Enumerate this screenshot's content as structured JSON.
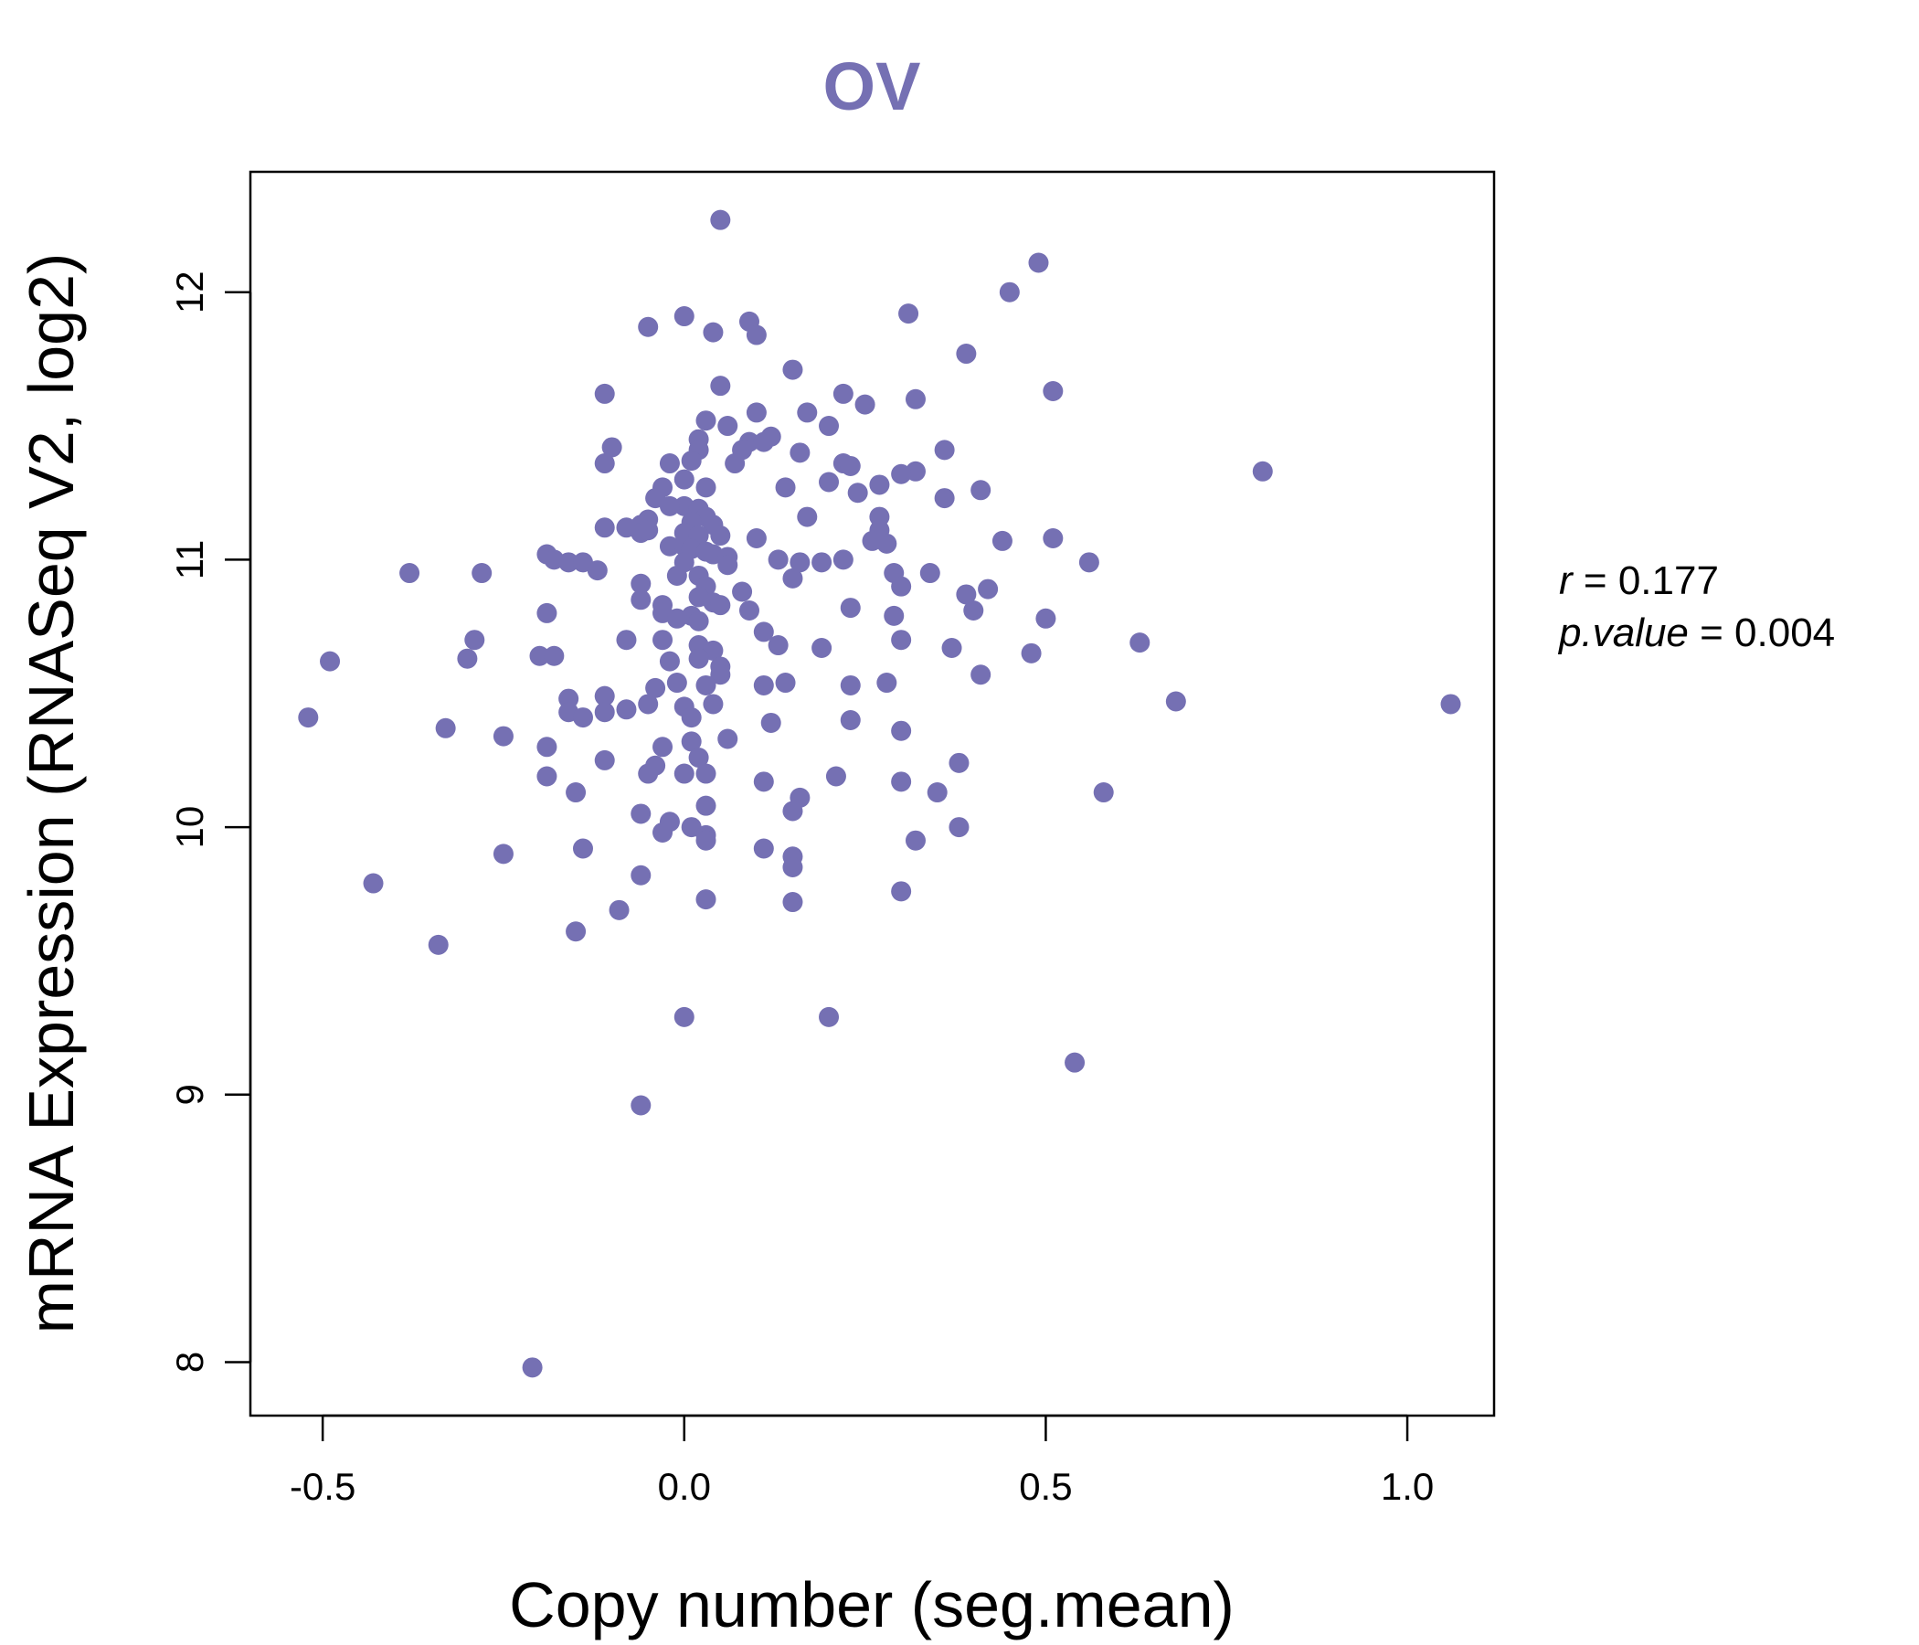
{
  "chart_data": {
    "type": "scatter",
    "title": "OV",
    "xlabel": "Copy number (seg.mean)",
    "ylabel": "mRNA Expression (RNASeq V2, log2)",
    "xlim": [
      -0.6,
      1.12
    ],
    "ylim": [
      7.8,
      12.45
    ],
    "xticks": [
      -0.5,
      0.0,
      0.5,
      1.0
    ],
    "xtick_labels": [
      "-0.5",
      "0.0",
      "0.5",
      "1.0"
    ],
    "yticks": [
      8,
      9,
      10,
      11,
      12
    ],
    "ytick_labels": [
      "8",
      "9",
      "10",
      "11",
      "12"
    ],
    "point_color": "#7570b3",
    "annotation": {
      "r_label": "r",
      "r_value": "0.177",
      "p_label": "p.value",
      "p_value": "0.004"
    },
    "points": [
      [
        0.05,
        12.27
      ],
      [
        0.49,
        12.11
      ],
      [
        0.45,
        12.0
      ],
      [
        0.31,
        11.92
      ],
      [
        0.0,
        11.91
      ],
      [
        0.09,
        11.89
      ],
      [
        -0.05,
        11.87
      ],
      [
        0.04,
        11.85
      ],
      [
        0.1,
        11.84
      ],
      [
        0.39,
        11.77
      ],
      [
        0.15,
        11.71
      ],
      [
        0.05,
        11.65
      ],
      [
        0.51,
        11.63
      ],
      [
        -0.11,
        11.62
      ],
      [
        0.22,
        11.62
      ],
      [
        0.32,
        11.6
      ],
      [
        0.25,
        11.58
      ],
      [
        0.17,
        11.55
      ],
      [
        0.1,
        11.55
      ],
      [
        0.03,
        11.52
      ],
      [
        0.06,
        11.5
      ],
      [
        0.2,
        11.5
      ],
      [
        0.02,
        11.45
      ],
      [
        0.12,
        11.46
      ],
      [
        0.09,
        11.44
      ],
      [
        0.11,
        11.44
      ],
      [
        -0.1,
        11.42
      ],
      [
        0.08,
        11.41
      ],
      [
        0.02,
        11.41
      ],
      [
        0.36,
        11.41
      ],
      [
        0.16,
        11.4
      ],
      [
        0.01,
        11.37
      ],
      [
        -0.11,
        11.36
      ],
      [
        -0.02,
        11.36
      ],
      [
        0.07,
        11.36
      ],
      [
        0.22,
        11.36
      ],
      [
        0.23,
        11.35
      ],
      [
        0.32,
        11.33
      ],
      [
        0.8,
        11.33
      ],
      [
        0.3,
        11.32
      ],
      [
        0.0,
        11.3
      ],
      [
        0.2,
        11.29
      ],
      [
        0.27,
        11.28
      ],
      [
        0.14,
        11.27
      ],
      [
        0.41,
        11.26
      ],
      [
        -0.03,
        11.27
      ],
      [
        0.03,
        11.27
      ],
      [
        0.24,
        11.25
      ],
      [
        -0.04,
        11.23
      ],
      [
        0.36,
        11.23
      ],
      [
        0.0,
        11.2
      ],
      [
        0.02,
        11.19
      ],
      [
        -0.02,
        11.2
      ],
      [
        0.27,
        11.16
      ],
      [
        0.03,
        11.16
      ],
      [
        0.17,
        11.16
      ],
      [
        -0.05,
        11.15
      ],
      [
        0.01,
        11.14
      ],
      [
        -0.06,
        11.13
      ],
      [
        0.04,
        11.13
      ],
      [
        -0.11,
        11.12
      ],
      [
        -0.08,
        11.12
      ],
      [
        -0.06,
        11.1
      ],
      [
        -0.05,
        11.11
      ],
      [
        0.0,
        11.1
      ],
      [
        0.27,
        11.11
      ],
      [
        0.05,
        11.09
      ],
      [
        0.02,
        11.09
      ],
      [
        0.1,
        11.08
      ],
      [
        0.44,
        11.07
      ],
      [
        0.51,
        11.08
      ],
      [
        0.26,
        11.07
      ],
      [
        0.28,
        11.06
      ],
      [
        -0.02,
        11.05
      ],
      [
        0.0,
        11.05
      ],
      [
        0.01,
        11.04
      ],
      [
        0.03,
        11.03
      ],
      [
        -0.19,
        11.02
      ],
      [
        0.04,
        11.02
      ],
      [
        0.06,
        11.01
      ],
      [
        -0.18,
        11.0
      ],
      [
        0.13,
        11.0
      ],
      [
        0.22,
        11.0
      ],
      [
        -0.16,
        10.99
      ],
      [
        -0.14,
        10.99
      ],
      [
        0.0,
        10.99
      ],
      [
        0.06,
        10.98
      ],
      [
        0.16,
        10.99
      ],
      [
        0.19,
        10.99
      ],
      [
        0.56,
        10.99
      ],
      [
        -0.38,
        10.95
      ],
      [
        -0.28,
        10.95
      ],
      [
        -0.12,
        10.96
      ],
      [
        0.34,
        10.95
      ],
      [
        0.29,
        10.95
      ],
      [
        -0.01,
        10.94
      ],
      [
        0.02,
        10.94
      ],
      [
        0.15,
        10.93
      ],
      [
        0.3,
        10.9
      ],
      [
        -0.06,
        10.91
      ],
      [
        0.03,
        10.9
      ],
      [
        0.42,
        10.89
      ],
      [
        0.08,
        10.88
      ],
      [
        0.39,
        10.87
      ],
      [
        0.02,
        10.86
      ],
      [
        -0.06,
        10.85
      ],
      [
        0.04,
        10.84
      ],
      [
        -0.03,
        10.83
      ],
      [
        0.05,
        10.83
      ],
      [
        0.23,
        10.82
      ],
      [
        0.09,
        10.81
      ],
      [
        -0.19,
        10.8
      ],
      [
        -0.03,
        10.8
      ],
      [
        0.01,
        10.79
      ],
      [
        0.4,
        10.81
      ],
      [
        0.29,
        10.79
      ],
      [
        -0.01,
        10.78
      ],
      [
        0.5,
        10.78
      ],
      [
        0.02,
        10.77
      ],
      [
        0.11,
        10.73
      ],
      [
        -0.08,
        10.7
      ],
      [
        -0.03,
        10.7
      ],
      [
        0.3,
        10.7
      ],
      [
        -0.29,
        10.7
      ],
      [
        0.02,
        10.68
      ],
      [
        0.13,
        10.68
      ],
      [
        0.63,
        10.69
      ],
      [
        0.19,
        10.67
      ],
      [
        0.37,
        10.67
      ],
      [
        0.04,
        10.66
      ],
      [
        -0.3,
        10.63
      ],
      [
        -0.2,
        10.64
      ],
      [
        -0.18,
        10.64
      ],
      [
        0.02,
        10.63
      ],
      [
        0.48,
        10.65
      ],
      [
        -0.49,
        10.62
      ],
      [
        -0.02,
        10.62
      ],
      [
        0.05,
        10.6
      ],
      [
        0.05,
        10.57
      ],
      [
        0.41,
        10.57
      ],
      [
        -0.01,
        10.54
      ],
      [
        0.14,
        10.54
      ],
      [
        0.03,
        10.53
      ],
      [
        -0.04,
        10.52
      ],
      [
        0.11,
        10.53
      ],
      [
        0.23,
        10.53
      ],
      [
        0.28,
        10.54
      ],
      [
        -0.16,
        10.48
      ],
      [
        -0.11,
        10.49
      ],
      [
        -0.05,
        10.46
      ],
      [
        0.0,
        10.45
      ],
      [
        0.04,
        10.46
      ],
      [
        -0.08,
        10.44
      ],
      [
        -0.16,
        10.43
      ],
      [
        -0.11,
        10.43
      ],
      [
        0.68,
        10.47
      ],
      [
        1.06,
        10.46
      ],
      [
        -0.52,
        10.41
      ],
      [
        -0.14,
        10.41
      ],
      [
        0.01,
        10.41
      ],
      [
        0.23,
        10.4
      ],
      [
        0.12,
        10.39
      ],
      [
        -0.33,
        10.37
      ],
      [
        0.3,
        10.36
      ],
      [
        -0.25,
        10.34
      ],
      [
        0.06,
        10.33
      ],
      [
        0.01,
        10.32
      ],
      [
        -0.19,
        10.3
      ],
      [
        -0.03,
        10.3
      ],
      [
        -0.11,
        10.25
      ],
      [
        0.02,
        10.26
      ],
      [
        0.38,
        10.24
      ],
      [
        -0.04,
        10.23
      ],
      [
        0.0,
        10.2
      ],
      [
        -0.05,
        10.2
      ],
      [
        0.03,
        10.2
      ],
      [
        -0.19,
        10.19
      ],
      [
        0.21,
        10.19
      ],
      [
        0.11,
        10.17
      ],
      [
        0.3,
        10.17
      ],
      [
        -0.15,
        10.13
      ],
      [
        0.35,
        10.13
      ],
      [
        0.58,
        10.13
      ],
      [
        0.16,
        10.11
      ],
      [
        0.03,
        10.08
      ],
      [
        0.15,
        10.06
      ],
      [
        -0.06,
        10.05
      ],
      [
        -0.02,
        10.02
      ],
      [
        0.01,
        10.0
      ],
      [
        0.38,
        10.0
      ],
      [
        -0.03,
        9.98
      ],
      [
        0.03,
        9.97
      ],
      [
        0.03,
        9.95
      ],
      [
        0.32,
        9.95
      ],
      [
        -0.14,
        9.92
      ],
      [
        0.11,
        9.92
      ],
      [
        -0.25,
        9.9
      ],
      [
        0.15,
        9.89
      ],
      [
        0.15,
        9.85
      ],
      [
        -0.06,
        9.82
      ],
      [
        -0.43,
        9.79
      ],
      [
        0.3,
        9.76
      ],
      [
        0.03,
        9.73
      ],
      [
        0.15,
        9.72
      ],
      [
        -0.09,
        9.69
      ],
      [
        -0.15,
        9.61
      ],
      [
        -0.34,
        9.56
      ],
      [
        0.0,
        9.29
      ],
      [
        0.2,
        9.29
      ],
      [
        0.54,
        9.12
      ],
      [
        -0.06,
        8.96
      ],
      [
        -0.21,
        7.98
      ]
    ]
  }
}
